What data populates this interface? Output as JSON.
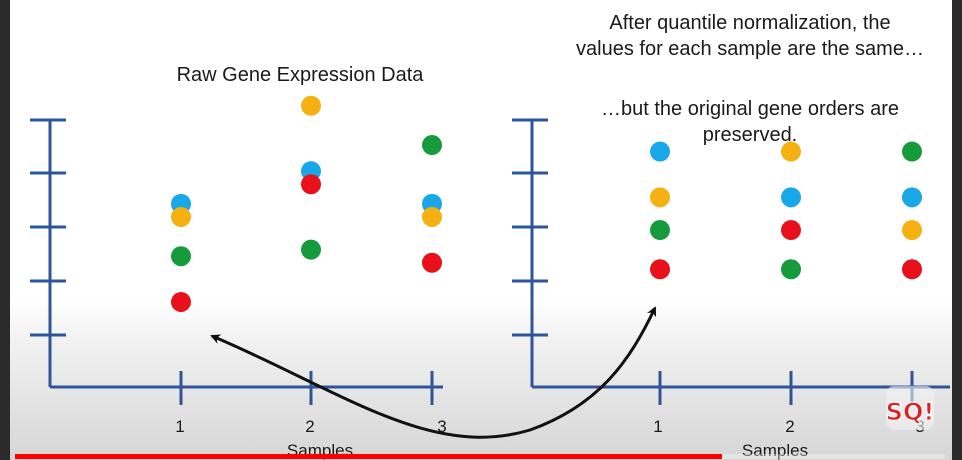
{
  "titles": {
    "left": "Raw Gene Expression Data",
    "right_line1": "After quantile normalization, the",
    "right_line2": "values for each sample are the same…",
    "right_line3": "…but the original gene orders are",
    "right_line4": "preserved."
  },
  "axes": {
    "left_ticks": [
      "1",
      "2",
      "3"
    ],
    "right_ticks": [
      "1",
      "2",
      "3"
    ],
    "left_xlabel": "Samples",
    "right_xlabel": "Samples"
  },
  "colors": {
    "axis": "#2e5597",
    "blue": "#1aa7e8",
    "orange": "#f5b111",
    "green": "#159a3c",
    "red": "#e8101b",
    "arrow": "#111111",
    "progress": "#ff0000"
  },
  "chart_data": [
    {
      "type": "scatter",
      "title": "Raw Gene Expression Data",
      "xlabel": "Samples",
      "ylabel": "",
      "categories": [
        "1",
        "2",
        "3"
      ],
      "ylim": [
        0,
        5
      ],
      "series": [
        {
          "color_key": "blue",
          "values": [
            2.8,
            3.3,
            2.8
          ]
        },
        {
          "color_key": "orange",
          "values": [
            2.6,
            4.3,
            2.6
          ]
        },
        {
          "color_key": "green",
          "values": [
            2.0,
            2.1,
            3.7
          ]
        },
        {
          "color_key": "red",
          "values": [
            1.3,
            3.1,
            1.9
          ]
        }
      ]
    },
    {
      "type": "scatter",
      "title": "",
      "xlabel": "Samples",
      "ylabel": "",
      "categories": [
        "1",
        "2",
        "3"
      ],
      "ylim": [
        0,
        5
      ],
      "series": [
        {
          "color_key": "blue",
          "values": [
            3.6,
            2.9,
            2.9
          ]
        },
        {
          "color_key": "orange",
          "values": [
            2.9,
            3.6,
            2.4
          ]
        },
        {
          "color_key": "green",
          "values": [
            2.4,
            1.8,
            3.6
          ]
        },
        {
          "color_key": "red",
          "values": [
            1.8,
            2.4,
            1.8
          ]
        }
      ]
    }
  ],
  "video": {
    "progress": 0.76
  },
  "logo": {
    "text": "SQ!"
  }
}
